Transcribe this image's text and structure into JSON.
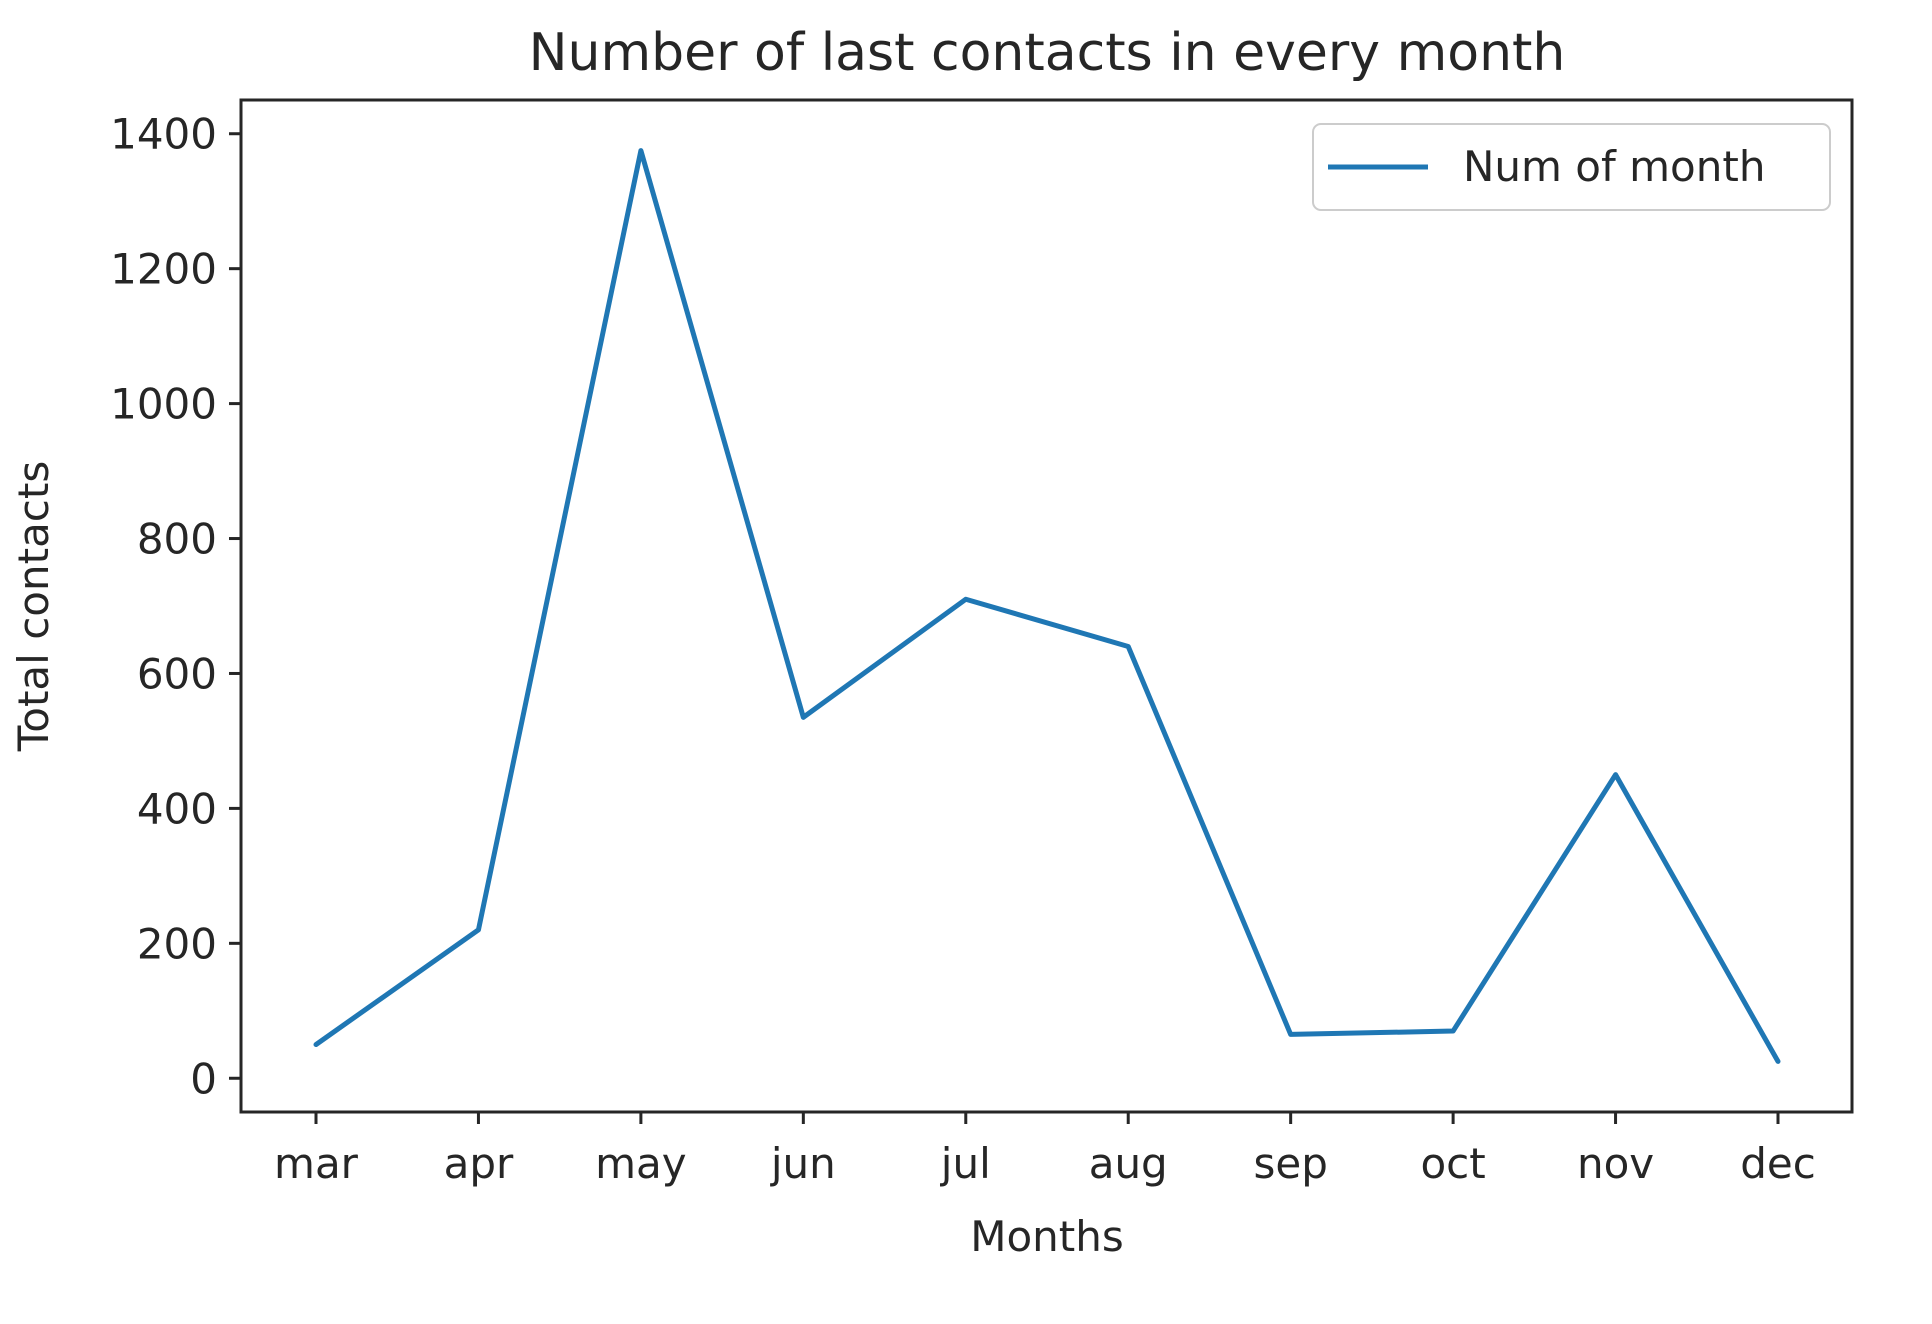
{
  "chart_data": {
    "type": "line",
    "title": "Number of last contacts in every month",
    "xlabel": "Months",
    "ylabel": "Total contacts",
    "categories": [
      "mar",
      "apr",
      "may",
      "jun",
      "jul",
      "aug",
      "sep",
      "oct",
      "nov",
      "dec"
    ],
    "series": [
      {
        "name": "Num of month",
        "values": [
          50,
          220,
          1375,
          535,
          710,
          640,
          65,
          70,
          450,
          25
        ],
        "color": "#1f77b4"
      }
    ],
    "ylim": [
      -50,
      1450
    ],
    "yticks": [
      0,
      200,
      400,
      600,
      800,
      1000,
      1200,
      1400
    ],
    "grid": false,
    "legend_position": "top-right"
  }
}
